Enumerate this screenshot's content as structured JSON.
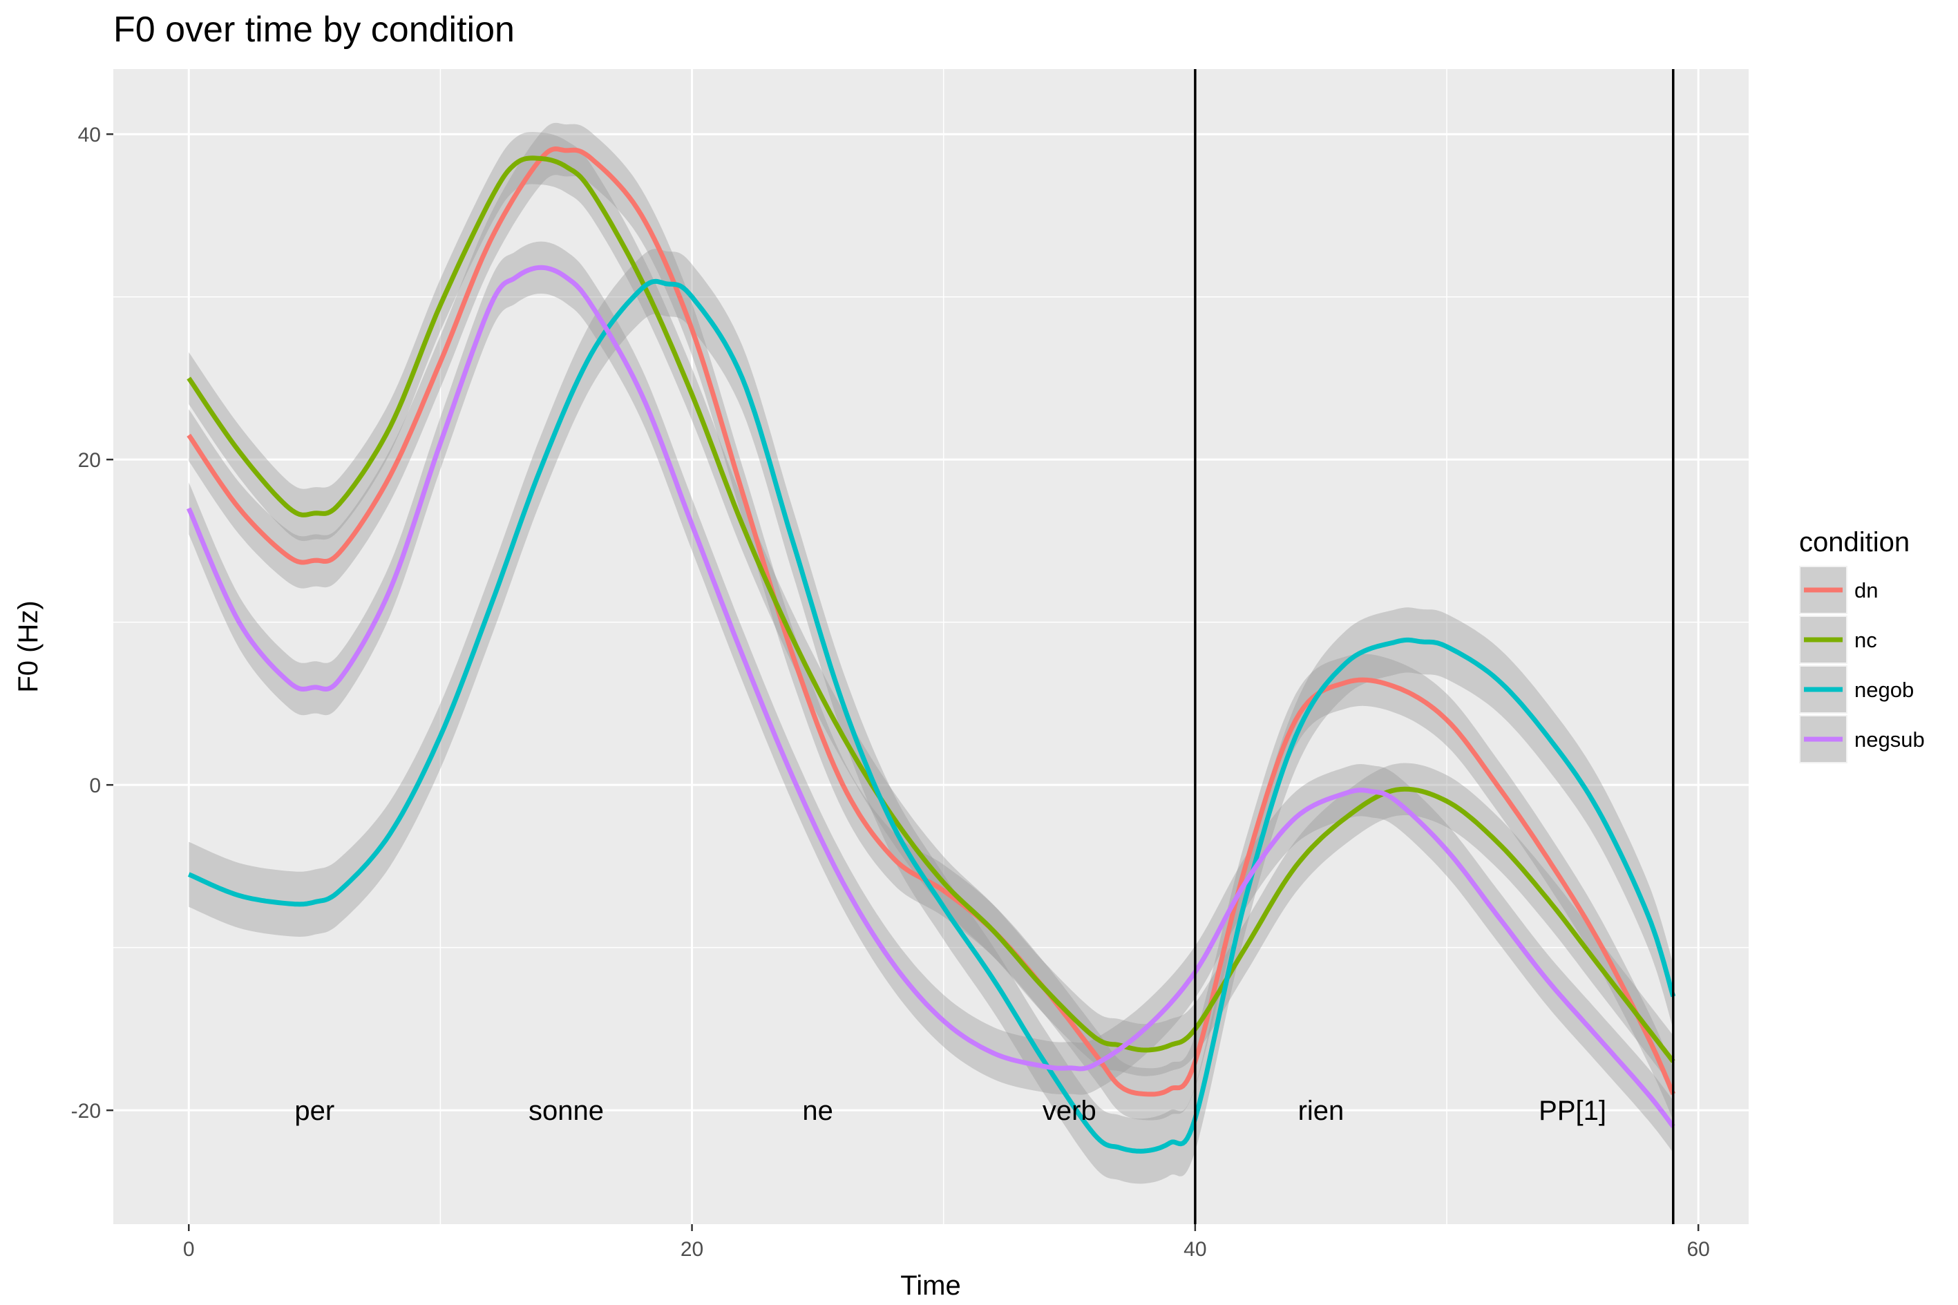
{
  "chart_data": {
    "type": "line",
    "title": "F0 over time by condition",
    "xlabel": "Time",
    "ylabel": "F0 (Hz)",
    "xlim": [
      -3,
      62
    ],
    "ylim": [
      -27,
      44
    ],
    "x_ticks": [
      0,
      20,
      40,
      60
    ],
    "y_ticks": [
      -20,
      0,
      20,
      40
    ],
    "x_tick_labels": [
      "0",
      "20",
      "40",
      "60"
    ],
    "y_tick_labels": [
      "-20",
      "0",
      "20",
      "40"
    ],
    "grid": true,
    "legend": {
      "title": "condition",
      "position": "right"
    },
    "confidence_band": true,
    "vertical_lines": [
      40,
      59
    ],
    "segment_labels": [
      {
        "label": "per",
        "x": 5,
        "y": -20
      },
      {
        "label": "sonne",
        "x": 15,
        "y": -20
      },
      {
        "label": "ne",
        "x": 25,
        "y": -20
      },
      {
        "label": "verb",
        "x": 35,
        "y": -20
      },
      {
        "label": "rien",
        "x": 45,
        "y": -20
      },
      {
        "label": "PP[1]",
        "x": 55,
        "y": -20
      }
    ],
    "series": [
      {
        "name": "dn",
        "color": "#F8766D",
        "band_width": 1.6,
        "x": [
          0,
          2,
          4,
          5,
          6,
          8,
          10,
          12,
          14,
          15,
          16,
          18,
          20,
          22,
          24,
          26,
          28,
          30,
          32,
          34,
          36,
          37,
          38,
          39,
          40,
          42,
          44,
          46,
          48,
          50,
          52,
          54,
          56,
          58,
          59
        ],
        "y": [
          21.5,
          17,
          14,
          13.8,
          14.3,
          19,
          26,
          33.5,
          38.5,
          39,
          38.5,
          35,
          28,
          18,
          8,
          0,
          -4.5,
          -6.5,
          -9,
          -12.5,
          -16.5,
          -18.5,
          -19,
          -18.7,
          -17,
          -5,
          4,
          6.3,
          6,
          4,
          0,
          -4.5,
          -9.5,
          -15.5,
          -19
        ]
      },
      {
        "name": "nc",
        "color": "#7CAE00",
        "band_width": 1.6,
        "x": [
          0,
          2,
          4,
          5,
          6,
          8,
          10,
          12,
          13,
          14,
          15,
          16,
          18,
          20,
          22,
          24,
          26,
          28,
          30,
          32,
          34,
          36,
          37,
          38,
          39,
          40,
          42,
          44,
          46,
          48,
          50,
          52,
          54,
          56,
          58,
          59
        ],
        "y": [
          25,
          20.5,
          17,
          16.7,
          17.3,
          22,
          29.5,
          36,
          38.2,
          38.5,
          38,
          36.5,
          31,
          24,
          16,
          9,
          3,
          -2,
          -6,
          -9,
          -12.5,
          -15.5,
          -16,
          -16.3,
          -16,
          -15,
          -10,
          -5,
          -2,
          -0.3,
          -1,
          -3.5,
          -7,
          -11,
          -15,
          -17
        ]
      },
      {
        "name": "negob",
        "color": "#00BFC4",
        "band_width": 2.0,
        "x": [
          0,
          2,
          4,
          5,
          6,
          8,
          10,
          12,
          14,
          16,
          18,
          19,
          20,
          22,
          24,
          26,
          28,
          30,
          32,
          34,
          36,
          37,
          38,
          39,
          40,
          42,
          44,
          46,
          48,
          49,
          50,
          52,
          54,
          56,
          58,
          59
        ],
        "y": [
          -5.5,
          -6.8,
          -7.3,
          -7.2,
          -6.5,
          -3,
          3,
          11,
          19.5,
          26.5,
          30.5,
          30.8,
          30,
          25,
          15,
          5,
          -2.5,
          -7.5,
          -12,
          -17,
          -21.5,
          -22.3,
          -22.5,
          -22,
          -20.5,
          -7,
          3,
          7.5,
          8.8,
          8.8,
          8.5,
          6.5,
          3,
          -1.5,
          -8,
          -13
        ]
      },
      {
        "name": "negsub",
        "color": "#C77CFF",
        "band_width": 1.6,
        "x": [
          0,
          2,
          4,
          5,
          6,
          8,
          10,
          12,
          13,
          14,
          15,
          16,
          18,
          20,
          22,
          24,
          26,
          28,
          30,
          32,
          34,
          35,
          36,
          38,
          40,
          42,
          44,
          46,
          47,
          48,
          50,
          52,
          54,
          56,
          58,
          59
        ],
        "y": [
          17,
          10,
          6.3,
          6,
          6.5,
          12,
          21,
          29.5,
          31.2,
          31.8,
          31.2,
          29.5,
          24,
          16,
          8,
          0.5,
          -6,
          -11,
          -14.5,
          -16.5,
          -17.3,
          -17.4,
          -17.2,
          -15,
          -11.5,
          -6,
          -2,
          -0.5,
          -0.4,
          -1,
          -4,
          -8,
          -12,
          -15.5,
          -19,
          -21
        ]
      }
    ]
  }
}
